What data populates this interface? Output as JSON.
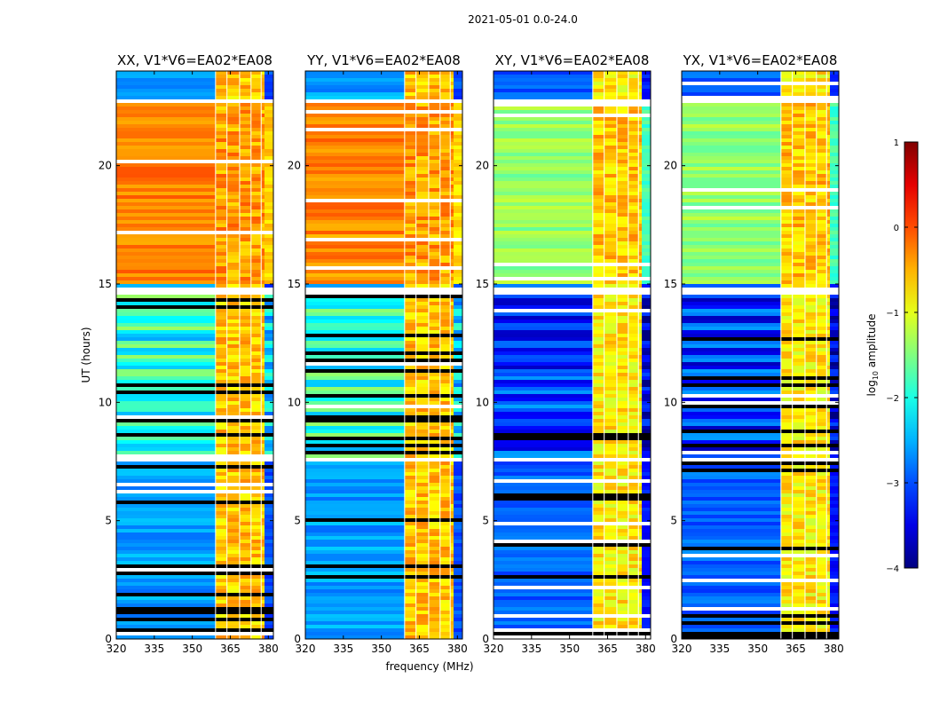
{
  "chart_data": {
    "type": "heatmap",
    "suptitle": "2021-05-01 0.0-24.0",
    "xlabel": "frequency (MHz)",
    "ylabel": "UT (hours)",
    "xlim": [
      320,
      382
    ],
    "ylim": [
      0,
      24
    ],
    "xticks": [
      320,
      335,
      350,
      365,
      380
    ],
    "yticks": [
      0,
      5,
      10,
      15,
      20
    ],
    "colorbar": {
      "label_prefix": "log",
      "label_sub": "10",
      "label_suffix": " amplitude",
      "range": [
        -4,
        1
      ],
      "ticks": [
        1,
        0,
        -1,
        -2,
        -3,
        -4
      ],
      "tick_labels": [
        "1",
        "0",
        "−1",
        "−2",
        "−3",
        "−4"
      ],
      "colormap": "jet"
    },
    "band_edges_mhz": [
      359,
      363.5,
      368.5,
      373,
      377
    ],
    "band_end_mhz": 378.5,
    "flag_gaps_hours": [
      [
        22.6,
        22.8
      ],
      [
        14.5,
        14.9
      ],
      [
        7.5,
        7.7
      ]
    ],
    "panels": [
      {
        "title": "XX, V1*V6=EA02*EA08",
        "pol": "XX",
        "levels": {
          "night": -0.25,
          "day_low": -2.6,
          "day_mid": -1.6,
          "band": -0.6
        }
      },
      {
        "title": "YY, V1*V6=EA02*EA08",
        "pol": "YY",
        "levels": {
          "night": -0.3,
          "day_low": -2.6,
          "day_mid": -1.6,
          "band": -0.6
        }
      },
      {
        "title": "XY, V1*V6=EA02*EA08",
        "pol": "XY",
        "levels": {
          "night": -1.4,
          "day_low": -2.9,
          "day_mid": -2.8,
          "band": -0.8
        }
      },
      {
        "title": "YX, V1*V6=EA02*EA08",
        "pol": "YX",
        "levels": {
          "night": -1.4,
          "day_low": -2.9,
          "day_mid": -2.8,
          "band": -0.8
        }
      }
    ]
  }
}
